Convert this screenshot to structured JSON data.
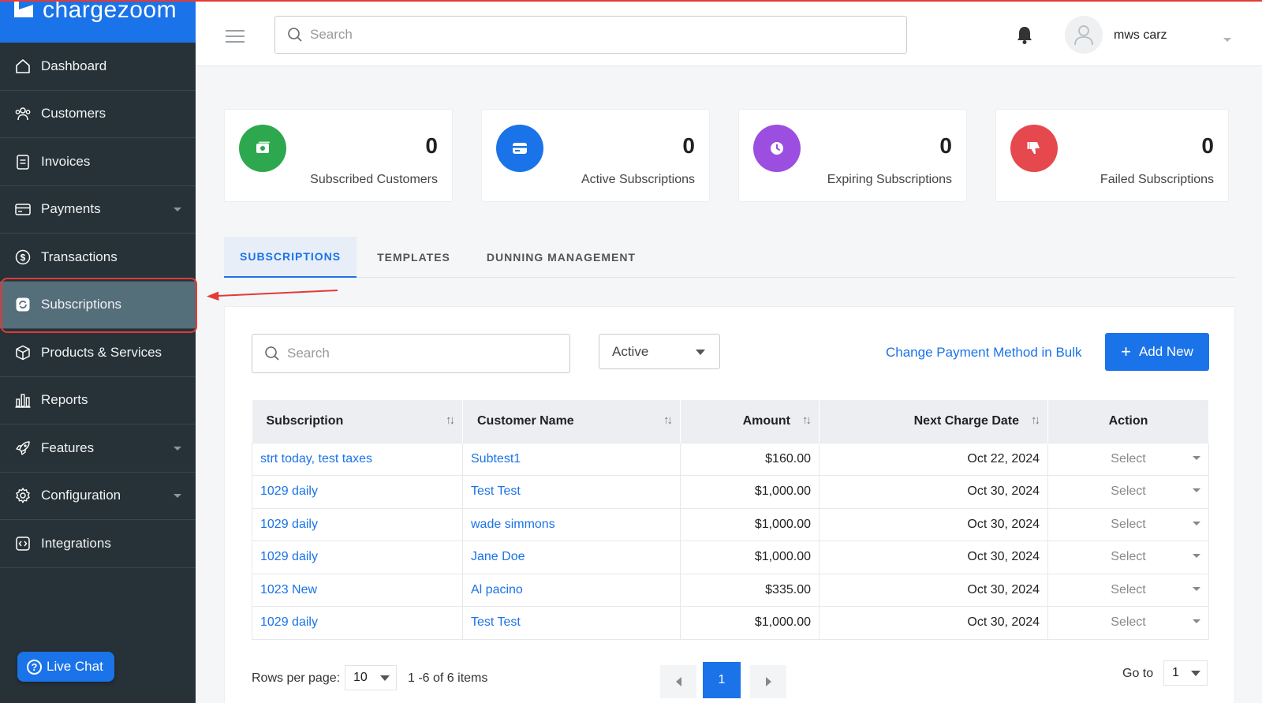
{
  "brand": {
    "name": "chargezoom",
    "color": "#1a73e8"
  },
  "sidebar": {
    "items": [
      {
        "label": "Dashboard",
        "icon": "home-icon",
        "has_caret": false
      },
      {
        "label": "Customers",
        "icon": "users-icon",
        "has_caret": false
      },
      {
        "label": "Invoices",
        "icon": "invoice-icon",
        "has_caret": false
      },
      {
        "label": "Payments",
        "icon": "credit-card-icon",
        "has_caret": true
      },
      {
        "label": "Transactions",
        "icon": "dollar-icon",
        "has_caret": false
      },
      {
        "label": "Subscriptions",
        "icon": "refresh-icon",
        "has_caret": false,
        "active": true
      },
      {
        "label": "Products & Services",
        "icon": "box-icon",
        "has_caret": false
      },
      {
        "label": "Reports",
        "icon": "bar-chart-icon",
        "has_caret": false
      },
      {
        "label": "Features",
        "icon": "rocket-icon",
        "has_caret": true
      },
      {
        "label": "Configuration",
        "icon": "gear-icon",
        "has_caret": true
      },
      {
        "label": "Integrations",
        "icon": "code-icon",
        "has_caret": false
      }
    ],
    "live_chat": "Live Chat"
  },
  "header": {
    "search_placeholder": "Search",
    "user_name": "mws carz"
  },
  "stats": [
    {
      "value": "0",
      "label": "Subscribed Customers",
      "color": "#2ea84f",
      "icon": "cash-icon"
    },
    {
      "value": "0",
      "label": "Active Subscriptions",
      "color": "#1a73e8",
      "icon": "card-icon"
    },
    {
      "value": "0",
      "label": "Expiring Subscriptions",
      "color": "#9c4ee0",
      "icon": "clock-icon"
    },
    {
      "value": "0",
      "label": "Failed Subscriptions",
      "color": "#e5484d",
      "icon": "thumbs-down-icon"
    }
  ],
  "tabs": [
    {
      "label": "SUBSCRIPTIONS",
      "active": true
    },
    {
      "label": "TEMPLATES",
      "active": false
    },
    {
      "label": "DUNNING MANAGEMENT",
      "active": false
    }
  ],
  "toolbar": {
    "search_placeholder": "Search",
    "status_value": "Active",
    "bulk_link": "Change Payment Method in Bulk",
    "add_label": "Add New"
  },
  "table": {
    "columns": [
      "Subscription",
      "Customer Name",
      "Amount",
      "Next Charge Date",
      "Action"
    ],
    "rows": [
      {
        "subscription": "strt today, test taxes",
        "customer": "Subtest1",
        "amount": "$160.00",
        "date": "Oct 22, 2024",
        "action": "Select"
      },
      {
        "subscription": "1029 daily",
        "customer": "Test Test",
        "amount": "$1,000.00",
        "date": "Oct 30, 2024",
        "action": "Select"
      },
      {
        "subscription": "1029 daily",
        "customer": "wade simmons",
        "amount": "$1,000.00",
        "date": "Oct 30, 2024",
        "action": "Select"
      },
      {
        "subscription": "1029 daily",
        "customer": "Jane Doe",
        "amount": "$1,000.00",
        "date": "Oct 30, 2024",
        "action": "Select"
      },
      {
        "subscription": "1023 New",
        "customer": "Al pacino",
        "amount": "$335.00",
        "date": "Oct 30, 2024",
        "action": "Select"
      },
      {
        "subscription": "1029 daily",
        "customer": "Test Test",
        "amount": "$1,000.00",
        "date": "Oct 30, 2024",
        "action": "Select"
      }
    ]
  },
  "pagination": {
    "rows_label": "Rows per page:",
    "rows_value": "10",
    "items_label": "1 -6 of 6  items",
    "current_page": "1",
    "goto_label": "Go to",
    "goto_value": "1"
  }
}
